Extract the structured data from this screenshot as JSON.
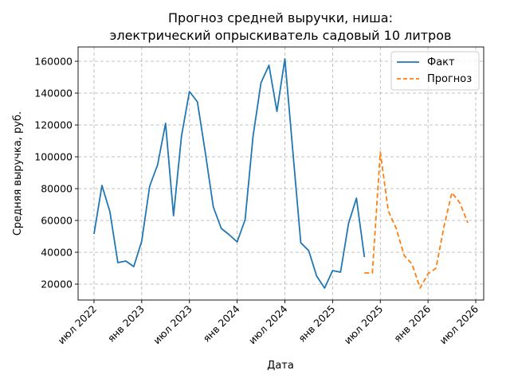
{
  "chart_data": {
    "type": "line",
    "title_line1": "Прогноз средней выручки, ниша:",
    "title_line2": "электрический опрыскиватель садовый 10 литров",
    "xlabel": "Дата",
    "ylabel": "Средняя выручка, руб.",
    "x_tick_labels": [
      "июл 2022",
      "янв 2023",
      "июл 2023",
      "янв 2024",
      "июл 2024",
      "янв 2025",
      "июл 2025",
      "янв 2026",
      "июл 2026"
    ],
    "x_tick_dates": [
      "2022-07",
      "2023-01",
      "2023-07",
      "2024-01",
      "2024-07",
      "2025-01",
      "2025-07",
      "2026-01",
      "2026-07"
    ],
    "y_ticks": [
      20000,
      40000,
      60000,
      80000,
      100000,
      120000,
      140000,
      160000
    ],
    "y_tick_labels": [
      "20000",
      "40000",
      "60000",
      "80000",
      "100000",
      "120000",
      "140000",
      "160000"
    ],
    "xlim": [
      "2022-05",
      "2026-08"
    ],
    "ylim": [
      10000,
      169000
    ],
    "grid": true,
    "legend_position": "top-right",
    "series": [
      {
        "name": "Факт",
        "color": "#1f77b4",
        "style": "solid",
        "x": [
          "2022-07",
          "2022-08",
          "2022-09",
          "2022-10",
          "2022-11",
          "2022-12",
          "2023-01",
          "2023-02",
          "2023-03",
          "2023-04",
          "2023-05",
          "2023-06",
          "2023-07",
          "2023-08",
          "2023-09",
          "2023-10",
          "2023-11",
          "2023-12",
          "2024-01",
          "2024-02",
          "2024-03",
          "2024-04",
          "2024-05",
          "2024-06",
          "2024-07",
          "2024-08",
          "2024-09",
          "2024-10",
          "2024-11",
          "2024-12",
          "2025-01",
          "2025-02",
          "2025-03",
          "2025-04",
          "2025-05"
        ],
        "y": [
          51500,
          82000,
          65500,
          33500,
          34500,
          31000,
          47000,
          81500,
          95000,
          121000,
          63000,
          113000,
          141000,
          134500,
          102500,
          68500,
          55000,
          51000,
          46500,
          60500,
          113000,
          146500,
          157500,
          128500,
          161500,
          103500,
          46000,
          41000,
          25000,
          17500,
          28500,
          27500,
          58000,
          74000,
          37000
        ]
      },
      {
        "name": "Прогноз",
        "color": "#ff7f0e",
        "style": "dashed",
        "x": [
          "2025-05",
          "2025-06",
          "2025-07",
          "2025-08",
          "2025-09",
          "2025-10",
          "2025-11",
          "2025-12",
          "2026-01",
          "2026-02",
          "2026-03",
          "2026-04",
          "2026-05",
          "2026-06"
        ],
        "y": [
          27000,
          27000,
          103000,
          66000,
          55000,
          38000,
          32500,
          17500,
          26500,
          30000,
          56000,
          77500,
          71000,
          58500
        ]
      }
    ]
  }
}
